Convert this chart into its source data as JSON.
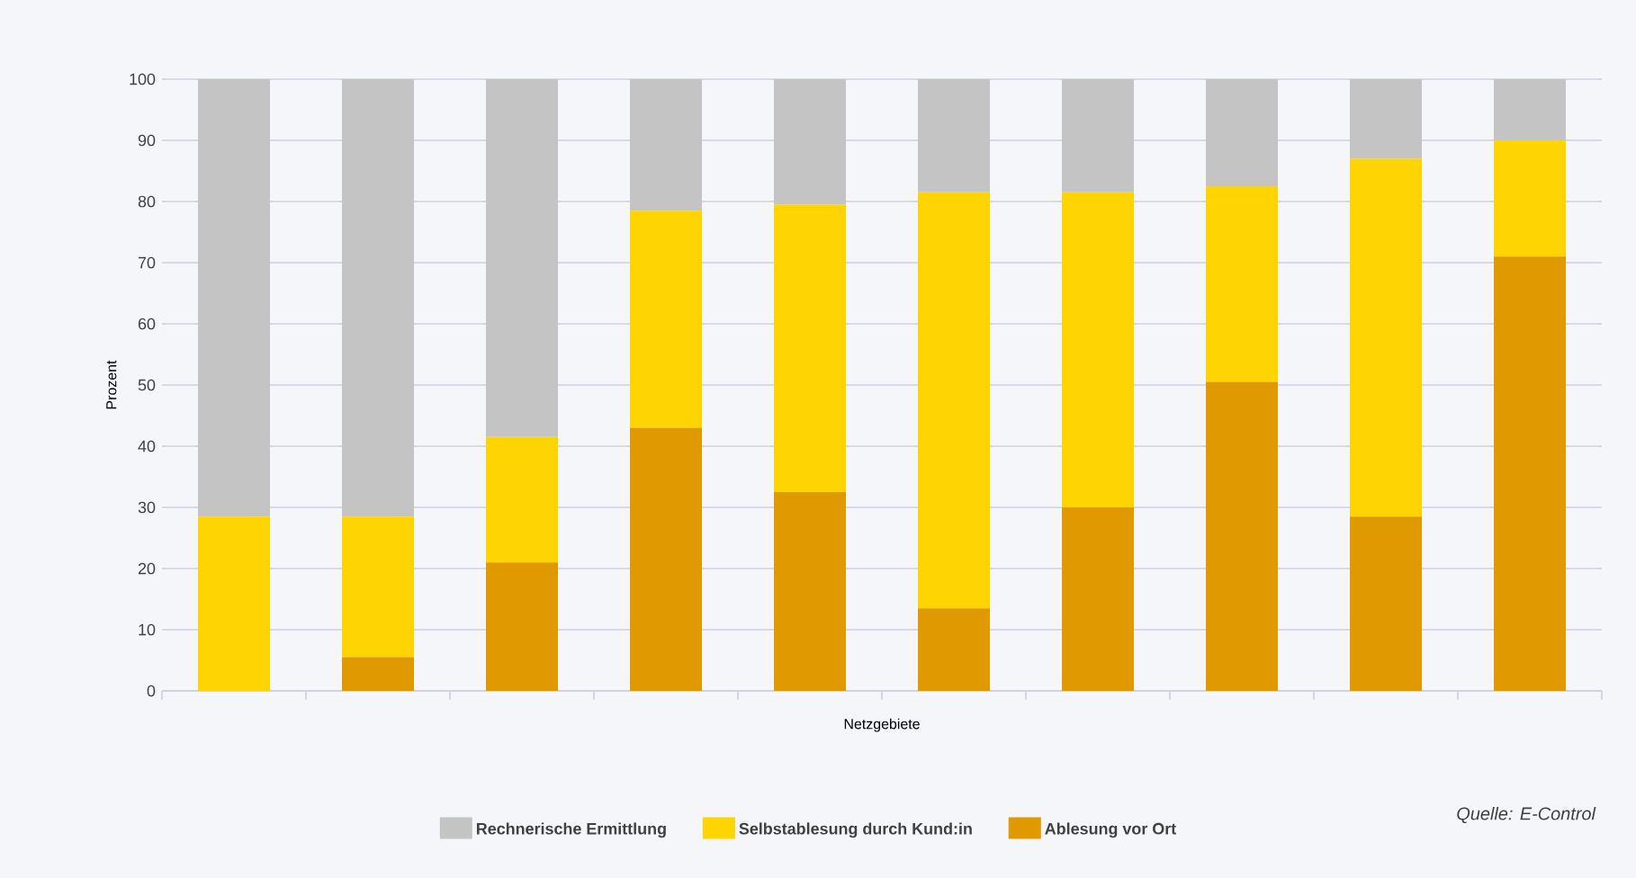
{
  "chart_data": {
    "type": "bar",
    "stacked": true,
    "xlabel": "Netzgebiete",
    "ylabel": "Prozent",
    "categories": [
      null,
      null,
      null,
      null,
      null,
      null,
      null,
      null,
      null,
      null
    ],
    "series": [
      {
        "name": "Ablesung vor Ort",
        "color": "#e09a00",
        "values": [
          0,
          5.5,
          21,
          43,
          32.5,
          13.5,
          30,
          50.5,
          28.5,
          71
        ]
      },
      {
        "name": "Selbstablesung durch Kund:in",
        "color": "#ffd400",
        "values": [
          28.5,
          23,
          20.5,
          35.5,
          47,
          68,
          51.5,
          32,
          58.5,
          19
        ]
      },
      {
        "name": "Rechnerische Ermittlung",
        "color": "#c4c4c4",
        "values": [
          71.5,
          71.5,
          58.5,
          21.5,
          20.5,
          18.5,
          18.5,
          17.5,
          13,
          10
        ]
      }
    ],
    "ylim": [
      0,
      100
    ],
    "yticks": [
      0,
      10,
      20,
      30,
      40,
      50,
      60,
      70,
      80,
      90,
      100
    ],
    "grid": "y",
    "legend": "bottom",
    "tick_labels": "y",
    "annotations": [
      "Quelle: E-Control"
    ]
  }
}
